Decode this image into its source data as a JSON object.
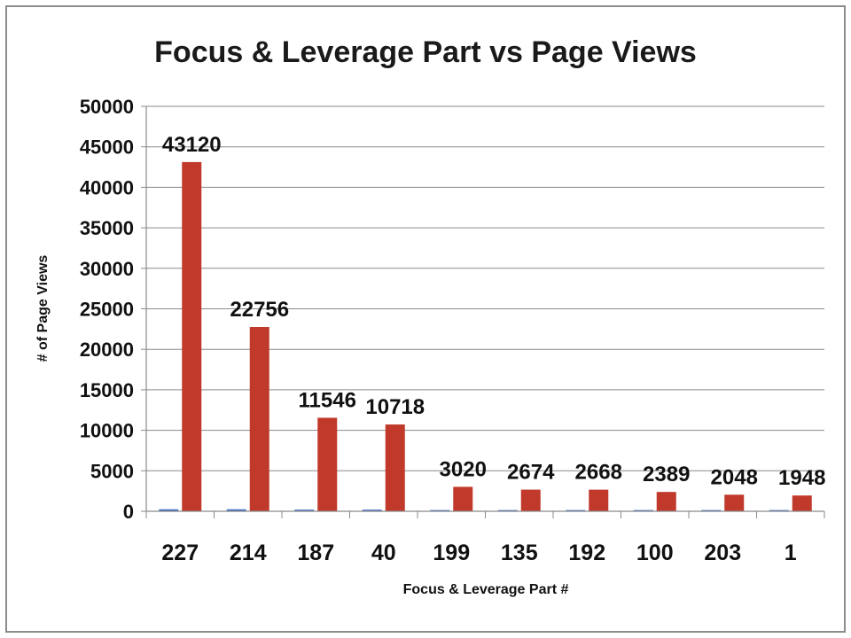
{
  "chart_data": {
    "type": "bar",
    "title": "Focus & Leverage Part vs Page Views",
    "xlabel": "Focus & Leverage Part #",
    "ylabel": "# of Page Views",
    "categories": [
      "227",
      "214",
      "187",
      "40",
      "199",
      "135",
      "192",
      "100",
      "203",
      "1"
    ],
    "series": [
      {
        "values": [
          250,
          250,
          200,
          200,
          150,
          150,
          150,
          150,
          150,
          150
        ],
        "color": "#4472c4"
      },
      {
        "values": [
          43120,
          22756,
          11546,
          10718,
          3020,
          2674,
          2668,
          2389,
          2048,
          1948
        ],
        "color": "#c0392b"
      }
    ],
    "data_labels": [
      "43120",
      "22756",
      "11546",
      "10718",
      "3020",
      "2674",
      "2668",
      "2389",
      "2048",
      "1948"
    ],
    "ylim": [
      0,
      50000
    ],
    "yticks": [
      0,
      5000,
      10000,
      15000,
      20000,
      25000,
      30000,
      35000,
      40000,
      45000,
      50000
    ],
    "grid": true,
    "legend": "none"
  }
}
